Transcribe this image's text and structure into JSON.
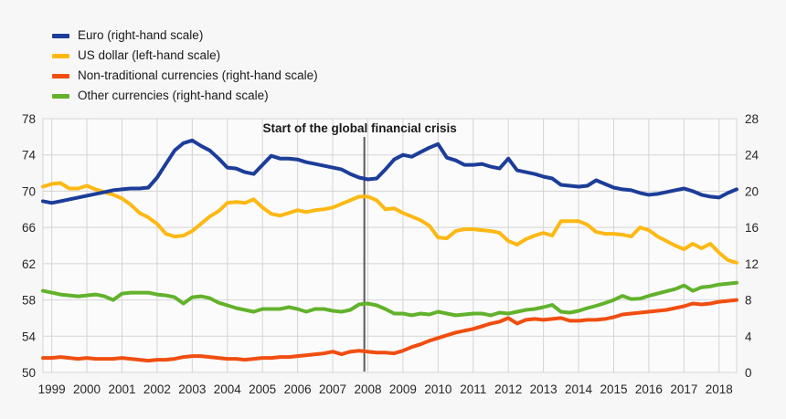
{
  "chart_data": {
    "type": "line",
    "title": "",
    "frequency": "quarterly",
    "x_range": [
      "1999Q1",
      "2018Q4"
    ],
    "x_tick_labels": [
      "1999",
      "2000",
      "2001",
      "2002",
      "2003",
      "2004",
      "2005",
      "2006",
      "2007",
      "2008",
      "2009",
      "2010",
      "2011",
      "2012",
      "2013",
      "2014",
      "2015",
      "2016",
      "2017",
      "2018"
    ],
    "left_axis": {
      "min": 50,
      "max": 78,
      "ticks": [
        78,
        74,
        70,
        66,
        62,
        58,
        54,
        50
      ]
    },
    "right_axis": {
      "min": 0,
      "max": 28,
      "ticks": [
        28,
        24,
        20,
        16,
        12,
        8,
        4,
        0
      ]
    },
    "grid": true,
    "legend_position": "top-left",
    "annotation": {
      "text": "Start of the global financial crisis",
      "position": "2008Q2",
      "quarter_index": 36.6,
      "line_color": "#595959",
      "text_color": "#1a1a1a"
    },
    "series": [
      {
        "name": "Euro (right-hand scale)",
        "slug": "euro",
        "axis": "right",
        "color": "#1c3d99",
        "values": [
          18.9,
          18.7,
          18.9,
          19.1,
          19.3,
          19.5,
          19.7,
          19.9,
          20.1,
          20.2,
          20.3,
          20.3,
          20.4,
          21.5,
          23.0,
          24.5,
          25.3,
          25.6,
          25.0,
          24.5,
          23.6,
          22.6,
          22.5,
          22.1,
          21.9,
          22.9,
          23.9,
          23.6,
          23.6,
          23.5,
          23.2,
          23.0,
          22.8,
          22.6,
          22.4,
          21.9,
          21.5,
          21.3,
          21.4,
          22.4,
          23.5,
          24.0,
          23.8,
          24.3,
          24.8,
          25.2,
          23.7,
          23.4,
          22.9,
          22.9,
          23.0,
          22.7,
          22.5,
          23.6,
          22.3,
          22.1,
          21.9,
          21.6,
          21.4,
          20.7,
          20.6,
          20.5,
          20.6,
          21.2,
          20.8,
          20.4,
          20.2,
          20.1,
          19.8,
          19.6,
          19.7,
          19.9,
          20.1,
          20.3,
          20.0,
          19.6,
          19.4,
          19.3,
          19.8,
          20.2
        ]
      },
      {
        "name": "US dollar (left-hand scale)",
        "slug": "us-dollar",
        "axis": "left",
        "color": "#fdb813",
        "values": [
          70.5,
          70.8,
          70.9,
          70.3,
          70.3,
          70.6,
          70.2,
          69.9,
          69.6,
          69.2,
          68.5,
          67.6,
          67.1,
          66.4,
          65.3,
          65.0,
          65.1,
          65.6,
          66.4,
          67.2,
          67.8,
          68.7,
          68.8,
          68.7,
          69.1,
          68.2,
          67.5,
          67.3,
          67.6,
          67.9,
          67.7,
          67.9,
          68.0,
          68.2,
          68.6,
          69.0,
          69.4,
          69.4,
          69.0,
          68.0,
          68.1,
          67.6,
          67.2,
          66.8,
          66.2,
          64.9,
          64.8,
          65.6,
          65.8,
          65.8,
          65.7,
          65.6,
          65.4,
          64.5,
          64.1,
          64.7,
          65.1,
          65.4,
          65.1,
          66.7,
          66.7,
          66.7,
          66.3,
          65.5,
          65.3,
          65.3,
          65.2,
          65.0,
          66.0,
          65.7,
          65.0,
          64.5,
          64.0,
          63.6,
          64.2,
          63.7,
          64.2,
          63.2,
          62.4,
          62.1
        ]
      },
      {
        "name": "Non-traditional currencies (right-hand scale)",
        "slug": "non-traditional",
        "axis": "right",
        "color": "#f04e10",
        "values": [
          1.6,
          1.6,
          1.7,
          1.6,
          1.5,
          1.6,
          1.5,
          1.5,
          1.5,
          1.6,
          1.5,
          1.4,
          1.3,
          1.4,
          1.4,
          1.5,
          1.7,
          1.8,
          1.8,
          1.7,
          1.6,
          1.5,
          1.5,
          1.4,
          1.5,
          1.6,
          1.6,
          1.7,
          1.7,
          1.8,
          1.9,
          2.0,
          2.1,
          2.3,
          2.0,
          2.3,
          2.4,
          2.3,
          2.2,
          2.2,
          2.1,
          2.4,
          2.8,
          3.1,
          3.5,
          3.8,
          4.1,
          4.4,
          4.6,
          4.8,
          5.1,
          5.4,
          5.6,
          6.0,
          5.4,
          5.8,
          5.9,
          5.8,
          5.9,
          6.0,
          5.7,
          5.7,
          5.8,
          5.8,
          5.9,
          6.1,
          6.4,
          6.5,
          6.6,
          6.7,
          6.8,
          6.9,
          7.1,
          7.3,
          7.6,
          7.5,
          7.6,
          7.8,
          7.9,
          8.0
        ]
      },
      {
        "name": "Other currencies (right-hand scale)",
        "slug": "other",
        "axis": "right",
        "color": "#62b22c",
        "values": [
          9.0,
          8.8,
          8.6,
          8.5,
          8.4,
          8.5,
          8.6,
          8.4,
          8.0,
          8.7,
          8.8,
          8.8,
          8.8,
          8.6,
          8.5,
          8.3,
          7.6,
          8.3,
          8.4,
          8.2,
          7.7,
          7.4,
          7.1,
          6.9,
          6.7,
          7.0,
          7.0,
          7.0,
          7.2,
          7.0,
          6.7,
          7.0,
          7.0,
          6.8,
          6.7,
          6.9,
          7.5,
          7.6,
          7.4,
          7.0,
          6.5,
          6.5,
          6.3,
          6.5,
          6.4,
          6.7,
          6.5,
          6.3,
          6.4,
          6.5,
          6.5,
          6.3,
          6.6,
          6.5,
          6.7,
          6.9,
          7.0,
          7.2,
          7.45,
          6.7,
          6.6,
          6.8,
          7.1,
          7.35,
          7.65,
          8.0,
          8.45,
          8.1,
          8.15,
          8.45,
          8.7,
          8.95,
          9.2,
          9.6,
          9.0,
          9.4,
          9.5,
          9.7,
          9.8,
          9.9
        ]
      }
    ],
    "style": {
      "grid_color": "#d4d4d4",
      "plot_background": "#fbfbfb",
      "page_background": "#f7f7f7",
      "tick_label_color": "#262626",
      "line_width": 4
    }
  }
}
